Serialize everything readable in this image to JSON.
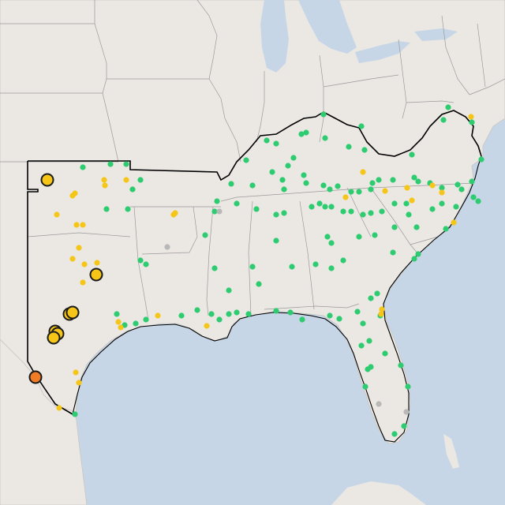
{
  "map": {
    "colors": {
      "land": "#ebe8e4",
      "water": "#c7d6e6",
      "state_border": "#9a9a9a",
      "region_outline": "#000000",
      "status_green": "#2ecc71",
      "status_yellow": "#f5c518",
      "status_gray": "#b8b8b8",
      "status_orange": "#f07c26"
    },
    "legend": []
  }
}
